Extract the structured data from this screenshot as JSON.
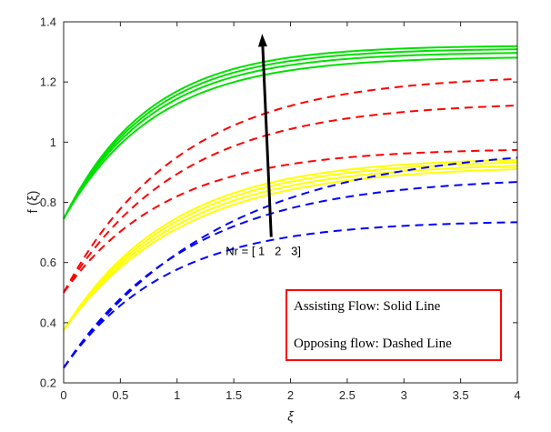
{
  "chart_data": {
    "type": "line",
    "xlabel": "ξ",
    "ylabel": "f  (ξ)",
    "xlim": [
      0,
      4
    ],
    "ylim": [
      0.2,
      1.4
    ],
    "xticks": [
      "0",
      "0.5",
      "1",
      "1.5",
      "2",
      "2.5",
      "3",
      "3.5",
      "4"
    ],
    "yticks": [
      "0.2",
      "0.4",
      "0.6",
      "0.8",
      "1",
      "1.2",
      "1.4"
    ],
    "grid": false,
    "annotation": {
      "text": "Nr = [ 1   2   3]",
      "arrow_from": [
        1.83,
        0.685
      ],
      "arrow_to": [
        1.75,
        1.36
      ]
    },
    "legend_box": {
      "line1": "Assisting Flow:  Solid Line",
      "line2": "Opposing flow: Dashed Line",
      "border_color": "#ff0000"
    },
    "colors": {
      "green": "#00e000",
      "red": "#ff0000",
      "yellow": "#ffff00",
      "blue": "#0000ff"
    },
    "series": [
      {
        "color": "green",
        "style": "solid",
        "y0": 0.745,
        "yinf": 1.322,
        "k": 1.33
      },
      {
        "color": "green",
        "style": "solid",
        "y0": 0.745,
        "yinf": 1.312,
        "k": 1.3
      },
      {
        "color": "green",
        "style": "solid",
        "y0": 0.745,
        "yinf": 1.3,
        "k": 1.27
      },
      {
        "color": "green",
        "style": "solid",
        "y0": 0.745,
        "yinf": 1.285,
        "k": 1.23
      },
      {
        "color": "red",
        "style": "dashed",
        "y0": 0.5,
        "yinf": 1.225,
        "k": 0.97
      },
      {
        "color": "red",
        "style": "dashed",
        "y0": 0.5,
        "yinf": 1.135,
        "k": 0.97
      },
      {
        "color": "red",
        "style": "dashed",
        "y0": 0.5,
        "yinf": 0.98,
        "k": 1.1
      },
      {
        "color": "yellow",
        "style": "solid",
        "y0": 0.375,
        "yinf": 0.95,
        "k": 1.05
      },
      {
        "color": "yellow",
        "style": "solid",
        "y0": 0.375,
        "yinf": 0.942,
        "k": 1.02
      },
      {
        "color": "yellow",
        "style": "solid",
        "y0": 0.375,
        "yinf": 0.932,
        "k": 0.99
      },
      {
        "color": "yellow",
        "style": "solid",
        "y0": 0.375,
        "yinf": 0.922,
        "k": 0.96
      },
      {
        "color": "blue",
        "style": "dashed",
        "y0": 0.25,
        "yinf": 0.99,
        "k": 0.72
      },
      {
        "color": "blue",
        "style": "dashed",
        "y0": 0.25,
        "yinf": 0.885,
        "k": 0.9
      },
      {
        "color": "blue",
        "style": "dashed",
        "y0": 0.25,
        "yinf": 0.74,
        "k": 1.1
      }
    ]
  }
}
